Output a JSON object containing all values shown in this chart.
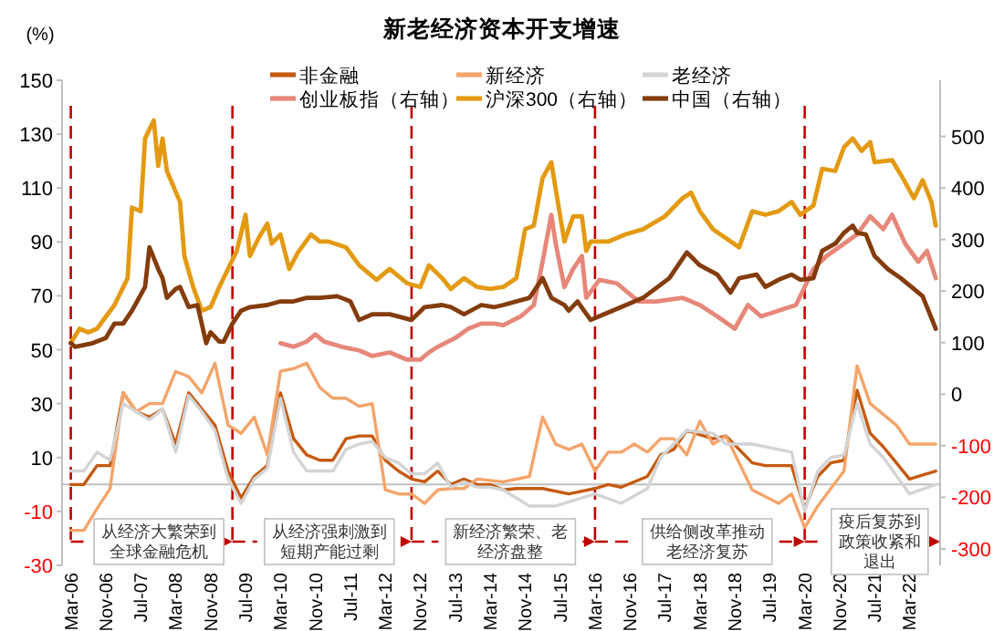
{
  "chart_data": {
    "type": "line",
    "title": "新老经济资本开支增速",
    "ylabel": "(%)",
    "legend": "top",
    "xlim": [
      "2006-01",
      "2022-10"
    ],
    "ylim": [
      -30,
      150
    ],
    "yticks": [
      -30,
      -10,
      10,
      30,
      50,
      70,
      90,
      110,
      130,
      150
    ],
    "y2lim": [
      -332,
      609
    ],
    "y2ticks": [
      -300,
      -200,
      -100,
      0,
      100,
      200,
      300,
      400,
      500
    ],
    "xticks": [
      {
        "value": "2006-03",
        "label": "Mar-06"
      },
      {
        "value": "2006-11",
        "label": "Nov-06"
      },
      {
        "value": "2007-07",
        "label": "Jul-07"
      },
      {
        "value": "2008-03",
        "label": "Mar-08"
      },
      {
        "value": "2008-11",
        "label": "Nov-08"
      },
      {
        "value": "2009-07",
        "label": "Jul-09"
      },
      {
        "value": "2010-03",
        "label": "Mar-10"
      },
      {
        "value": "2010-11",
        "label": "Nov-10"
      },
      {
        "value": "2011-07",
        "label": "Jul-11"
      },
      {
        "value": "2012-03",
        "label": "Mar-12"
      },
      {
        "value": "2012-11",
        "label": "Nov-12"
      },
      {
        "value": "2013-07",
        "label": "Jul-13"
      },
      {
        "value": "2014-03",
        "label": "Mar-14"
      },
      {
        "value": "2014-11",
        "label": "Nov-14"
      },
      {
        "value": "2015-07",
        "label": "Jul-15"
      },
      {
        "value": "2016-03",
        "label": "Mar-16"
      },
      {
        "value": "2016-11",
        "label": "Nov-16"
      },
      {
        "value": "2017-07",
        "label": "Jul-17"
      },
      {
        "value": "2018-03",
        "label": "Mar-18"
      },
      {
        "value": "2018-11",
        "label": "Nov-18"
      },
      {
        "value": "2019-07",
        "label": "Jul-19"
      },
      {
        "value": "2020-03",
        "label": "Mar-20"
      },
      {
        "value": "2020-11",
        "label": "Nov-20"
      },
      {
        "value": "2021-07",
        "label": "Jul-21"
      },
      {
        "value": "2022-03",
        "label": "Mar-22"
      }
    ],
    "series": [
      {
        "name": "非金融",
        "color": "#c55a11",
        "x": [
          "2006-03",
          "2006-06",
          "2006-09",
          "2006-12",
          "2007-03",
          "2007-06",
          "2007-09",
          "2007-12",
          "2008-03",
          "2008-06",
          "2008-09",
          "2008-12",
          "2009-03",
          "2009-06",
          "2009-09",
          "2009-12",
          "2010-03",
          "2010-06",
          "2010-09",
          "2010-12",
          "2011-03",
          "2011-06",
          "2011-09",
          "2011-12",
          "2012-03",
          "2012-06",
          "2012-09",
          "2012-12",
          "2013-03",
          "2013-06",
          "2013-09",
          "2013-12",
          "2014-03",
          "2014-06",
          "2014-09",
          "2015-03",
          "2015-09",
          "2016-03",
          "2016-06",
          "2016-09",
          "2017-03",
          "2017-06",
          "2017-09",
          "2017-12",
          "2018-06",
          "2018-09",
          "2019-03",
          "2019-06",
          "2019-12",
          "2020-03",
          "2020-06",
          "2020-09",
          "2020-12",
          "2021-03",
          "2021-06",
          "2021-09",
          "2021-12",
          "2022-03",
          "2022-09"
        ],
        "values": [
          0,
          0,
          7,
          7,
          34,
          27,
          25,
          28,
          15,
          34,
          28,
          22,
          5,
          -5,
          3,
          7,
          34,
          17,
          11,
          9,
          9,
          17,
          18,
          18,
          9,
          5,
          2,
          1,
          5,
          0,
          2,
          0,
          0,
          -2,
          -1.5,
          -1.5,
          -3.5,
          -1.5,
          0,
          -1,
          3,
          11,
          13,
          20,
          17,
          18,
          8,
          7,
          7,
          -9,
          3,
          8,
          9,
          35,
          19,
          14,
          8,
          2,
          5
        ]
      },
      {
        "name": "新经济",
        "color": "#f4a46a",
        "x": [
          "2006-03",
          "2006-06",
          "2006-09",
          "2006-12",
          "2007-03",
          "2007-06",
          "2007-09",
          "2007-12",
          "2008-03",
          "2008-06",
          "2008-09",
          "2008-12",
          "2009-03",
          "2009-06",
          "2009-09",
          "2009-12",
          "2010-03",
          "2010-06",
          "2010-09",
          "2010-12",
          "2011-03",
          "2011-06",
          "2011-09",
          "2011-12",
          "2012-03",
          "2012-06",
          "2012-09",
          "2012-12",
          "2013-03",
          "2013-06",
          "2013-09",
          "2013-12",
          "2014-06",
          "2014-12",
          "2015-03",
          "2015-06",
          "2015-09",
          "2015-12",
          "2016-03",
          "2016-06",
          "2016-09",
          "2016-12",
          "2017-03",
          "2017-06",
          "2017-09",
          "2017-12",
          "2018-03",
          "2018-06",
          "2018-09",
          "2019-03",
          "2019-09",
          "2019-12",
          "2020-03",
          "2020-06",
          "2020-12",
          "2021-03",
          "2021-06",
          "2021-12",
          "2022-03",
          "2022-09"
        ],
        "values": [
          -17,
          -17,
          -9,
          -1.5,
          34,
          27,
          30,
          30,
          42,
          40,
          34,
          45,
          22,
          19,
          25,
          11,
          42,
          43,
          45,
          36,
          32,
          32,
          29,
          30,
          -2,
          -3.5,
          -3.5,
          -7,
          -2,
          -1.5,
          -1.5,
          2,
          1,
          3,
          25,
          15,
          13,
          15,
          5,
          12,
          12,
          15,
          12,
          17,
          17,
          11,
          23.5,
          15,
          18,
          -2,
          -7,
          -3.5,
          -16,
          -8,
          5,
          44,
          30,
          22,
          15,
          15
        ]
      },
      {
        "name": "老经济",
        "color": "#d4d4d4",
        "x": [
          "2006-03",
          "2006-06",
          "2006-09",
          "2006-12",
          "2007-03",
          "2007-06",
          "2007-09",
          "2007-12",
          "2008-03",
          "2008-06",
          "2008-09",
          "2008-12",
          "2009-03",
          "2009-06",
          "2009-09",
          "2009-12",
          "2010-03",
          "2010-06",
          "2010-09",
          "2010-12",
          "2011-03",
          "2011-06",
          "2011-09",
          "2011-12",
          "2012-03",
          "2012-06",
          "2012-09",
          "2012-12",
          "2013-03",
          "2013-06",
          "2013-09",
          "2013-12",
          "2014-03",
          "2014-06",
          "2014-12",
          "2015-06",
          "2016-03",
          "2016-09",
          "2017-03",
          "2017-06",
          "2017-12",
          "2018-06",
          "2018-09",
          "2019-03",
          "2019-09",
          "2019-12",
          "2020-03",
          "2020-06",
          "2020-09",
          "2020-12",
          "2021-03",
          "2021-06",
          "2021-09",
          "2022-03",
          "2022-09"
        ],
        "values": [
          5,
          5,
          12,
          9,
          30,
          27,
          24,
          28,
          12,
          33,
          27,
          20,
          2,
          -7,
          2,
          6,
          32,
          12,
          5,
          5,
          5,
          13,
          15,
          16,
          10,
          8,
          4,
          4,
          8,
          -1,
          1,
          -1,
          -1,
          -2,
          -8,
          -8,
          -3.5,
          -7,
          -1.5,
          10,
          20,
          19,
          15,
          15,
          13,
          12,
          -10,
          5,
          10,
          11,
          30,
          15,
          10,
          -3.5,
          0
        ]
      },
      {
        "name": "创业板指（右轴）",
        "color": "#e6877a",
        "axis": "y2",
        "x": [
          "2010-03",
          "2010-06",
          "2010-09",
          "2010-11",
          "2011-01",
          "2011-05",
          "2011-09",
          "2011-12",
          "2012-04",
          "2012-08",
          "2012-11",
          "2013-01",
          "2013-03",
          "2013-07",
          "2013-10",
          "2014-01",
          "2014-04",
          "2014-06",
          "2014-10",
          "2015-01",
          "2015-03",
          "2015-05",
          "2015-06",
          "2015-08",
          "2015-10",
          "2015-12",
          "2016-01",
          "2016-04",
          "2016-08",
          "2017-01",
          "2017-05",
          "2017-11",
          "2018-03",
          "2018-07",
          "2018-11",
          "2019-02",
          "2019-05",
          "2019-09",
          "2020-01",
          "2020-03",
          "2020-05",
          "2020-08",
          "2020-12",
          "2021-03",
          "2021-06",
          "2021-09",
          "2021-11",
          "2022-02",
          "2022-05",
          "2022-07",
          "2022-09"
        ],
        "values": [
          99,
          92,
          102,
          116,
          102,
          92,
          85,
          74,
          81,
          67,
          67,
          81,
          92,
          109,
          127,
          137,
          137,
          134,
          151,
          173,
          257,
          348,
          292,
          208,
          243,
          268,
          187,
          222,
          215,
          180,
          180,
          187,
          173,
          151,
          127,
          173,
          151,
          162,
          173,
          208,
          243,
          268,
          292,
          310,
          345,
          320,
          348,
          292,
          257,
          278,
          225
        ]
      },
      {
        "name": "沪深300（右轴）",
        "color": "#e39a12",
        "axis": "y2",
        "x": [
          "2006-03",
          "2006-05",
          "2006-07",
          "2006-09",
          "2007-01",
          "2007-04",
          "2007-05",
          "2007-07",
          "2007-08",
          "2007-10",
          "2007-11",
          "2007-12",
          "2008-01",
          "2008-04",
          "2008-05",
          "2008-07",
          "2008-09",
          "2008-11",
          "2009-01",
          "2009-03",
          "2009-05",
          "2009-07",
          "2009-08",
          "2009-10",
          "2009-12",
          "2010-01",
          "2010-03",
          "2010-05",
          "2010-07",
          "2010-10",
          "2010-12",
          "2011-02",
          "2011-06",
          "2011-09",
          "2012-01",
          "2012-04",
          "2012-08",
          "2012-11",
          "2013-01",
          "2013-04",
          "2013-06",
          "2013-09",
          "2013-12",
          "2014-03",
          "2014-06",
          "2014-09",
          "2014-11",
          "2015-01",
          "2015-03",
          "2015-05",
          "2015-06",
          "2015-08",
          "2015-10",
          "2015-12",
          "2016-01",
          "2016-02",
          "2016-06",
          "2016-10",
          "2017-02",
          "2017-07",
          "2017-11",
          "2018-01",
          "2018-03",
          "2018-06",
          "2018-12",
          "2019-03",
          "2019-06",
          "2019-09",
          "2019-12",
          "2020-02",
          "2020-05",
          "2020-07",
          "2020-10",
          "2020-12",
          "2021-02",
          "2021-04",
          "2021-06",
          "2021-07",
          "2021-11",
          "2022-01",
          "2022-04",
          "2022-06",
          "2022-08",
          "2022-09"
        ],
        "values": [
          99,
          127,
          120,
          127,
          173,
          225,
          362,
          355,
          496,
          531,
          443,
          496,
          433,
          373,
          268,
          208,
          162,
          169,
          208,
          243,
          278,
          348,
          268,
          303,
          331,
          292,
          310,
          243,
          275,
          310,
          296,
          296,
          285,
          250,
          222,
          243,
          215,
          208,
          250,
          225,
          204,
          225,
          208,
          204,
          208,
          225,
          320,
          327,
          419,
          450,
          398,
          296,
          345,
          345,
          278,
          296,
          296,
          310,
          320,
          345,
          380,
          391,
          355,
          320,
          285,
          355,
          348,
          355,
          373,
          348,
          366,
          437,
          433,
          479,
          496,
          472,
          489,
          450,
          454,
          426,
          380,
          415,
          373,
          327
        ]
      },
      {
        "name": "中国（右轴）",
        "color": "#843c0c",
        "axis": "y2",
        "x": [
          "2006-03",
          "2006-04",
          "2006-08",
          "2006-11",
          "2007-01",
          "2007-03",
          "2007-05",
          "2007-08",
          "2007-09",
          "2007-11",
          "2007-12",
          "2008-01",
          "2008-03",
          "2008-04",
          "2008-06",
          "2008-08",
          "2008-10",
          "2008-11",
          "2009-01",
          "2009-02",
          "2009-04",
          "2009-06",
          "2009-08",
          "2009-12",
          "2010-03",
          "2010-06",
          "2010-09",
          "2010-12",
          "2011-04",
          "2011-07",
          "2011-09",
          "2011-12",
          "2012-04",
          "2012-09",
          "2012-12",
          "2013-04",
          "2013-06",
          "2013-09",
          "2014-01",
          "2014-04",
          "2014-06",
          "2014-12",
          "2015-03",
          "2015-05",
          "2015-08",
          "2015-09",
          "2015-11",
          "2016-02",
          "2016-05",
          "2016-09",
          "2017-02",
          "2017-08",
          "2017-12",
          "2018-03",
          "2018-07",
          "2018-10",
          "2018-12",
          "2019-04",
          "2019-06",
          "2019-09",
          "2019-12",
          "2020-02",
          "2020-05",
          "2020-07",
          "2020-10",
          "2020-12",
          "2021-02",
          "2021-03",
          "2021-05",
          "2021-07",
          "2021-10",
          "2022-01",
          "2022-04",
          "2022-06",
          "2022-09"
        ],
        "values": [
          99,
          92,
          99,
          109,
          137,
          137,
          162,
          208,
          285,
          243,
          225,
          187,
          204,
          208,
          169,
          173,
          99,
          120,
          102,
          102,
          137,
          162,
          169,
          173,
          180,
          180,
          187,
          187,
          190,
          180,
          144,
          155,
          155,
          144,
          169,
          173,
          169,
          155,
          173,
          169,
          173,
          187,
          225,
          187,
          173,
          162,
          180,
          144,
          155,
          169,
          187,
          225,
          275,
          250,
          232,
          197,
          225,
          232,
          208,
          222,
          232,
          222,
          225,
          278,
          292,
          313,
          327,
          313,
          310,
          268,
          243,
          225,
          204,
          190,
          127
        ]
      }
    ],
    "ref_lines": [
      {
        "axis": "y",
        "value": 0,
        "color": "#bfbfbf",
        "line_style": "solid"
      },
      {
        "axis": "x",
        "value": "2006-03",
        "color": "#c00000",
        "line_style": "dashed"
      },
      {
        "axis": "x",
        "value": "2009-04",
        "color": "#c00000",
        "line_style": "dashed"
      },
      {
        "axis": "x",
        "value": "2012-09",
        "color": "#c00000",
        "line_style": "dashed"
      },
      {
        "axis": "x",
        "value": "2016-03",
        "color": "#c00000",
        "line_style": "dashed"
      },
      {
        "axis": "x",
        "value": "2020-03",
        "color": "#c00000",
        "line_style": "dashed"
      }
    ],
    "annotations": [
      "从经济大繁荣到全球金融危机",
      "从经济强刺激到短期产能过剩",
      "新经济繁荣、老经济盘整",
      "供给侧改革推动老经济复苏",
      "疫后复苏到政策收紧和退出"
    ]
  }
}
